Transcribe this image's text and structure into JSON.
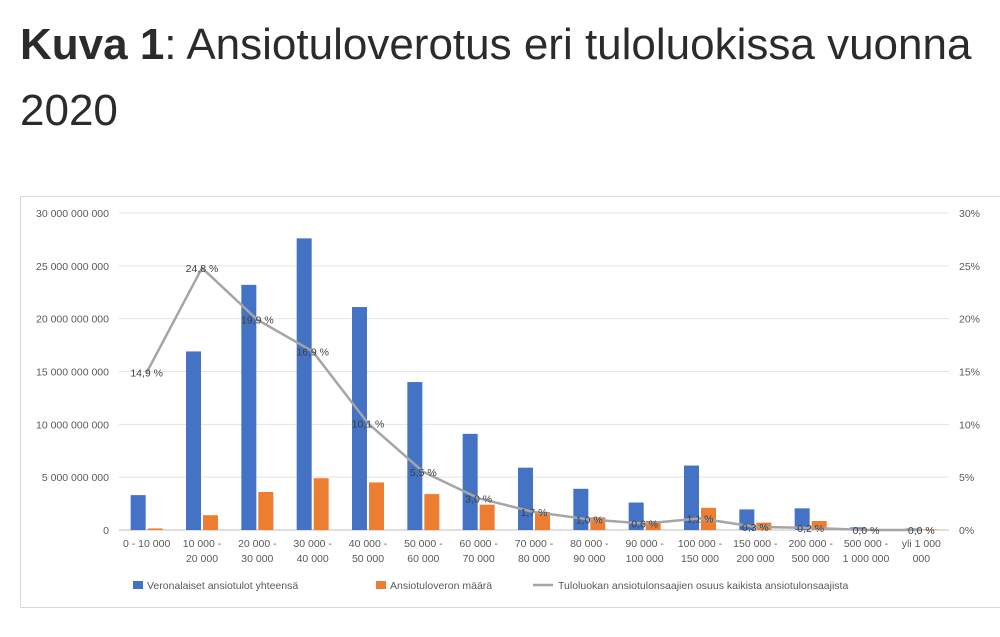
{
  "heading": {
    "label": "Kuva 1",
    "rest": ": Ansiotuloverotus eri tuloluokissa vuonna 2020"
  },
  "chart_data": {
    "type": "bar",
    "categories": [
      "0 - 10 000",
      "10 000 - 20 000",
      "20 000 - 30 000",
      "30 000 - 40 000",
      "40 000 - 50 000",
      "50 000 - 60 000",
      "60 000 - 70 000",
      "70 000 - 80 000",
      "80 000 - 90 000",
      "90 000 - 100 000",
      "100 000 - 150 000",
      "150 000 - 200 000",
      "200 000 - 500 000",
      "500 000 - 1 000 000",
      "yli 1 000 000"
    ],
    "category_lines": [
      [
        "0 - 10 000"
      ],
      [
        "10 000 -",
        "20 000"
      ],
      [
        "20 000 -",
        "30 000"
      ],
      [
        "30 000 -",
        "40 000"
      ],
      [
        "40 000 -",
        "50 000"
      ],
      [
        "50 000 -",
        "60 000"
      ],
      [
        "60 000 -",
        "70 000"
      ],
      [
        "70 000 -",
        "80 000"
      ],
      [
        "80 000 -",
        "90 000"
      ],
      [
        "90 000 -",
        "100 000"
      ],
      [
        "100 000 -",
        "150 000"
      ],
      [
        "150 000 -",
        "200 000"
      ],
      [
        "200 000 -",
        "500 000"
      ],
      [
        "500 000 -",
        "1 000 000"
      ],
      [
        "yli 1 000",
        "000"
      ]
    ],
    "series": [
      {
        "name": "Veronalaiset ansiotulot yhteensä",
        "kind": "bar",
        "axis": "left",
        "color": "#4472c4",
        "values": [
          3300000000,
          16900000000,
          23200000000,
          27600000000,
          21100000000,
          14000000000,
          9100000000,
          5900000000,
          3900000000,
          2600000000,
          6100000000,
          1950000000,
          2050000000,
          250000000,
          150000000
        ]
      },
      {
        "name": "Ansiotuloveron määrä",
        "kind": "bar",
        "axis": "left",
        "color": "#ed7d31",
        "values": [
          150000000,
          1400000000,
          3600000000,
          4900000000,
          4500000000,
          3400000000,
          2400000000,
          1700000000,
          1200000000,
          850000000,
          2100000000,
          700000000,
          850000000,
          100000000,
          60000000
        ]
      },
      {
        "name": "Tuloluokan ansiotulonsaajien osuus kaikista ansiotulonsaajista",
        "kind": "line",
        "axis": "right",
        "color": "#a5a5a5",
        "values": [
          14.9,
          24.8,
          19.9,
          16.9,
          10.1,
          5.5,
          3.0,
          1.7,
          1.0,
          0.6,
          1.1,
          0.3,
          0.2,
          0.0,
          0.0
        ],
        "labels": [
          "14,9 %",
          "24,8 %",
          "19,9 %",
          "16,9 %",
          "10,1 %",
          "5,5 %",
          "3,0 %",
          "1,7 %",
          "1,0 %",
          "0,6 %",
          "1,1 %",
          "0,3 %",
          "0,2 %",
          "0,0 %",
          "0,0 %"
        ]
      }
    ],
    "left_axis": {
      "min": 0,
      "max": 30000000000,
      "ticks": [
        "0",
        "5 000 000 000",
        "10 000 000 000",
        "15 000 000 000",
        "20 000 000 000",
        "25 000 000 000",
        "30 000 000 000"
      ]
    },
    "right_axis": {
      "min": 0,
      "max": 30,
      "ticks": [
        "0%",
        "5%",
        "10%",
        "15%",
        "20%",
        "25%",
        "30%"
      ]
    },
    "grid": true,
    "legend_position": "bottom"
  }
}
